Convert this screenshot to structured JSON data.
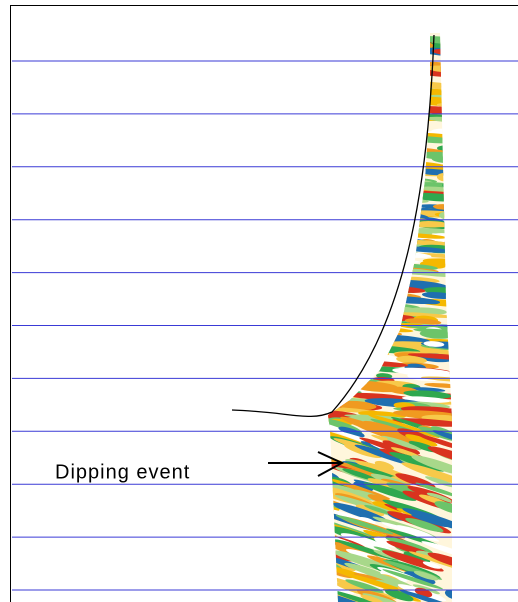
{
  "annotation": "Dipping event"
}
